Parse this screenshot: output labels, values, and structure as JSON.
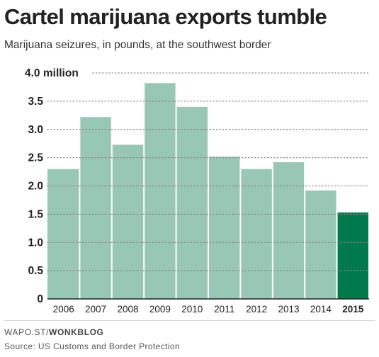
{
  "title": "Cartel marijuana exports tumble",
  "subtitle": "Marijuana seizures, in pounds, at the southwest border",
  "footer": {
    "credit_prefix": "WAPO.ST/",
    "credit_bold": "WONKBLOG",
    "source": "Source: US Customs and Border Protection"
  },
  "colors": {
    "bar": "#99c7b5",
    "highlight": "#007a4d",
    "grid": "#888888"
  },
  "chart_data": {
    "type": "bar",
    "title": "Cartel marijuana exports tumble",
    "subtitle": "Marijuana seizures, in pounds, at the southwest border",
    "categories": [
      "2006",
      "2007",
      "2008",
      "2009",
      "2010",
      "2011",
      "2012",
      "2013",
      "2014",
      "2015"
    ],
    "values": [
      2.3,
      3.22,
      2.73,
      3.82,
      3.4,
      2.52,
      2.3,
      2.42,
      1.92,
      1.53
    ],
    "unit": "million pounds",
    "highlight_category": "2015",
    "y_ticks": [
      "0",
      "0.5",
      "1.0",
      "1.5",
      "2.0",
      "2.5",
      "3.0",
      "3.5",
      "4.0 million"
    ],
    "y_tick_values": [
      0,
      0.5,
      1.0,
      1.5,
      2.0,
      2.5,
      3.0,
      3.5,
      4.0
    ],
    "ylim": [
      0,
      4.0
    ],
    "grid": true,
    "xlabel": "",
    "ylabel": ""
  }
}
